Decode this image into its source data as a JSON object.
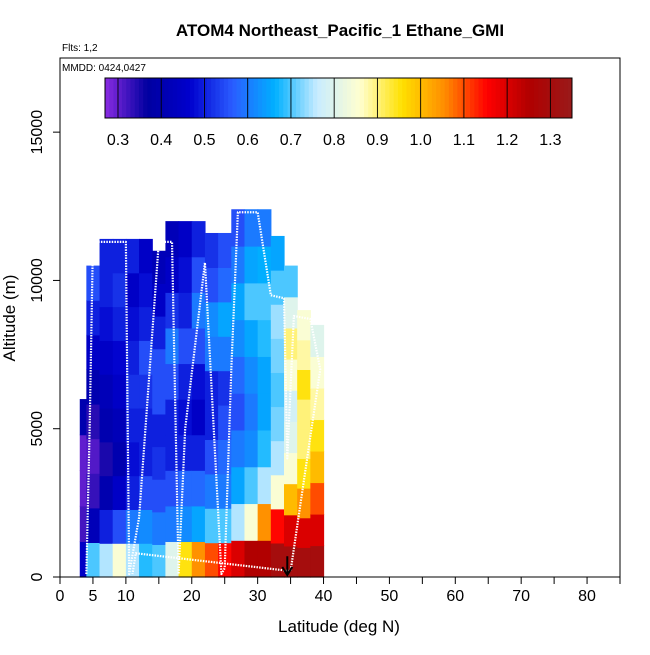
{
  "chart_data": {
    "type": "heatmap",
    "title": "ATOM4 Northeast_Pacific_1 Ethane_GMI",
    "annotations": [
      "Flts: 1,2",
      "MMDD: 0424,0427"
    ],
    "xlabel": "Latitude (deg N)",
    "ylabel": "Altitude (m)",
    "xlim": [
      0,
      85
    ],
    "ylim": [
      0,
      17500
    ],
    "xticks": [
      0,
      5,
      10,
      20,
      30,
      40,
      50,
      60,
      70,
      80
    ],
    "xtick_labels": [
      "0",
      "5",
      "10",
      "20",
      "30",
      "40",
      "50",
      "60",
      "70",
      "80"
    ],
    "yticks": [
      0,
      5000,
      10000,
      15000
    ],
    "ytick_labels": [
      "0",
      "5000",
      "10000",
      "15000"
    ],
    "colorbar": {
      "range": [
        0.27,
        1.35
      ],
      "ticks": [
        0.3,
        0.4,
        0.5,
        0.6,
        0.7,
        0.8,
        0.9,
        1.0,
        1.1,
        1.2,
        1.3
      ],
      "tick_labels": [
        "0.3",
        "0.4",
        "0.5",
        "0.6",
        "0.7",
        "0.8",
        "0.9",
        "1.0",
        "1.1",
        "1.2",
        "1.3"
      ],
      "colors": [
        "#8a2be2",
        "#0000a0",
        "#0000cd",
        "#2a5cff",
        "#00b0ff",
        "#c8ecff",
        "#ffffd0",
        "#ffe000",
        "#ff8c00",
        "#ff0000",
        "#b00000",
        "#9a1a1a"
      ]
    },
    "columns": [
      {
        "lat": 4,
        "top": 6000,
        "values": [
          0.45,
          0.32,
          0.3,
          0.3,
          0.4
        ]
      },
      {
        "lat": 5,
        "top": 10500,
        "values": [
          0.7,
          0.42,
          0.33,
          0.31,
          0.34,
          0.4,
          0.45,
          0.5,
          0.55
        ]
      },
      {
        "lat": 7,
        "top": 11400,
        "values": [
          0.75,
          0.5,
          0.4,
          0.35,
          0.4,
          0.42,
          0.45,
          0.48,
          0.5,
          0.5
        ]
      },
      {
        "lat": 9,
        "top": 11400,
        "values": [
          0.85,
          0.55,
          0.45,
          0.4,
          0.42,
          0.45,
          0.47,
          0.5,
          0.52,
          0.5
        ]
      },
      {
        "lat": 11,
        "top": 11400,
        "values": [
          0.75,
          0.6,
          0.5,
          0.48,
          0.5,
          0.52,
          0.5,
          0.48,
          0.45,
          0.5
        ]
      },
      {
        "lat": 13,
        "top": 11400,
        "values": [
          0.68,
          0.62,
          0.55,
          0.5,
          0.5,
          0.52,
          0.55,
          0.5,
          0.48,
          0.45
        ]
      },
      {
        "lat": 15,
        "top": 11000,
        "values": [
          0.7,
          0.6,
          0.55,
          0.52,
          0.5,
          0.55,
          0.55,
          0.5,
          0.45,
          0.42
        ]
      },
      {
        "lat": 17,
        "top": 12000,
        "values": [
          0.8,
          0.6,
          0.55,
          0.5,
          0.5,
          0.55,
          0.6,
          0.52,
          0.45,
          0.42
        ]
      },
      {
        "lat": 19,
        "top": 12000,
        "values": [
          0.95,
          0.62,
          0.58,
          0.5,
          0.48,
          0.5,
          0.55,
          0.5,
          0.48,
          0.45
        ]
      },
      {
        "lat": 21,
        "top": 12000,
        "values": [
          1.05,
          0.65,
          0.58,
          0.5,
          0.45,
          0.48,
          0.55,
          0.6,
          0.55,
          0.5
        ]
      },
      {
        "lat": 23,
        "top": 11600,
        "values": [
          1.1,
          0.7,
          0.6,
          0.55,
          0.5,
          0.5,
          0.6,
          0.62,
          0.55,
          0.52
        ]
      },
      {
        "lat": 25,
        "top": 11600,
        "values": [
          1.15,
          0.7,
          0.6,
          0.58,
          0.55,
          0.52,
          0.6,
          0.65,
          0.58,
          0.55
        ]
      },
      {
        "lat": 27,
        "top": 12400,
        "values": [
          1.2,
          0.75,
          0.65,
          0.6,
          0.55,
          0.58,
          0.62,
          0.65,
          0.6,
          0.55
        ]
      },
      {
        "lat": 29,
        "top": 12400,
        "values": [
          1.25,
          0.85,
          0.7,
          0.62,
          0.6,
          0.62,
          0.65,
          0.7,
          0.65,
          0.6
        ]
      },
      {
        "lat": 31,
        "top": 12400,
        "values": [
          1.25,
          1.05,
          0.75,
          0.68,
          0.65,
          0.65,
          0.68,
          0.7,
          0.66,
          0.6
        ]
      },
      {
        "lat": 33,
        "top": 11500,
        "values": [
          1.3,
          1.15,
          0.85,
          0.75,
          0.72,
          0.7,
          0.72,
          0.74,
          0.7,
          0.65
        ]
      },
      {
        "lat": 35,
        "top": 10500,
        "values": [
          1.3,
          1.2,
          1.0,
          0.85,
          0.8,
          0.78,
          0.85,
          0.9,
          0.8,
          0.7
        ]
      },
      {
        "lat": 37,
        "top": 9000,
        "values": [
          1.3,
          1.2,
          1.05,
          0.95,
          0.9,
          0.9,
          0.95,
          0.88,
          0.85
        ]
      },
      {
        "lat": 39,
        "top": 8500,
        "values": [
          1.3,
          1.2,
          1.1,
          1.0,
          0.95,
          0.88,
          0.85,
          0.8
        ]
      }
    ],
    "flight_track": {
      "x": [
        4,
        4.5,
        5,
        10,
        10.5,
        12,
        15,
        17,
        18,
        19,
        22,
        24.5,
        25,
        26,
        27,
        30,
        32,
        34,
        34.5,
        35.5,
        38,
        39.5,
        35,
        11.5,
        11
      ],
      "y": [
        100,
        5000,
        11300,
        11300,
        100,
        2000,
        11300,
        11300,
        100,
        5000,
        10600,
        100,
        300,
        7000,
        12300,
        12300,
        9500,
        9400,
        4000,
        8800,
        8700,
        7000,
        200,
        800,
        100
      ]
    },
    "arrow": {
      "lat": 34.5,
      "from_alt": 700,
      "to_alt": 0
    }
  }
}
